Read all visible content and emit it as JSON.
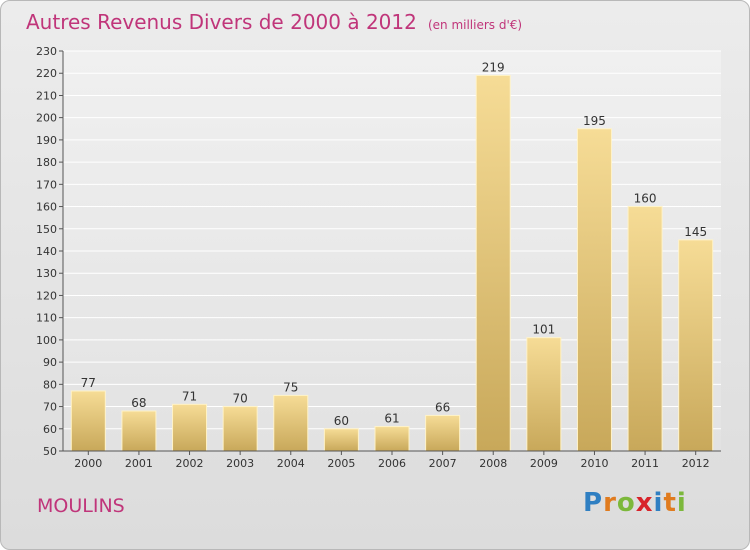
{
  "chart_data": {
    "type": "bar",
    "title": "Autres Revenus Divers de 2000 à 2012",
    "unit_note": "(en milliers d'€)",
    "categories": [
      "2000",
      "2001",
      "2002",
      "2003",
      "2004",
      "2005",
      "2006",
      "2007",
      "2008",
      "2009",
      "2010",
      "2011",
      "2012"
    ],
    "values": [
      77,
      68,
      71,
      70,
      75,
      60,
      61,
      66,
      219,
      101,
      195,
      160,
      145
    ],
    "ylim": [
      50,
      230
    ],
    "yticks": [
      50,
      60,
      70,
      80,
      90,
      100,
      110,
      120,
      130,
      140,
      150,
      160,
      170,
      180,
      190,
      200,
      210,
      220,
      230
    ],
    "grid": true,
    "bar_color_top": "#f6dc96",
    "bar_color_bottom": "#c8a85a"
  },
  "footer": {
    "town": "MOULINS",
    "logo_letters": [
      {
        "ch": "P",
        "color": "#2f7fc2"
      },
      {
        "ch": "r",
        "color": "#e07b1e"
      },
      {
        "ch": "o",
        "color": "#7cb83b"
      },
      {
        "ch": "x",
        "color": "#d8232a"
      },
      {
        "ch": "i",
        "color": "#2f7fc2"
      },
      {
        "ch": "t",
        "color": "#e07b1e"
      },
      {
        "ch": "i",
        "color": "#7cb83b"
      }
    ]
  }
}
